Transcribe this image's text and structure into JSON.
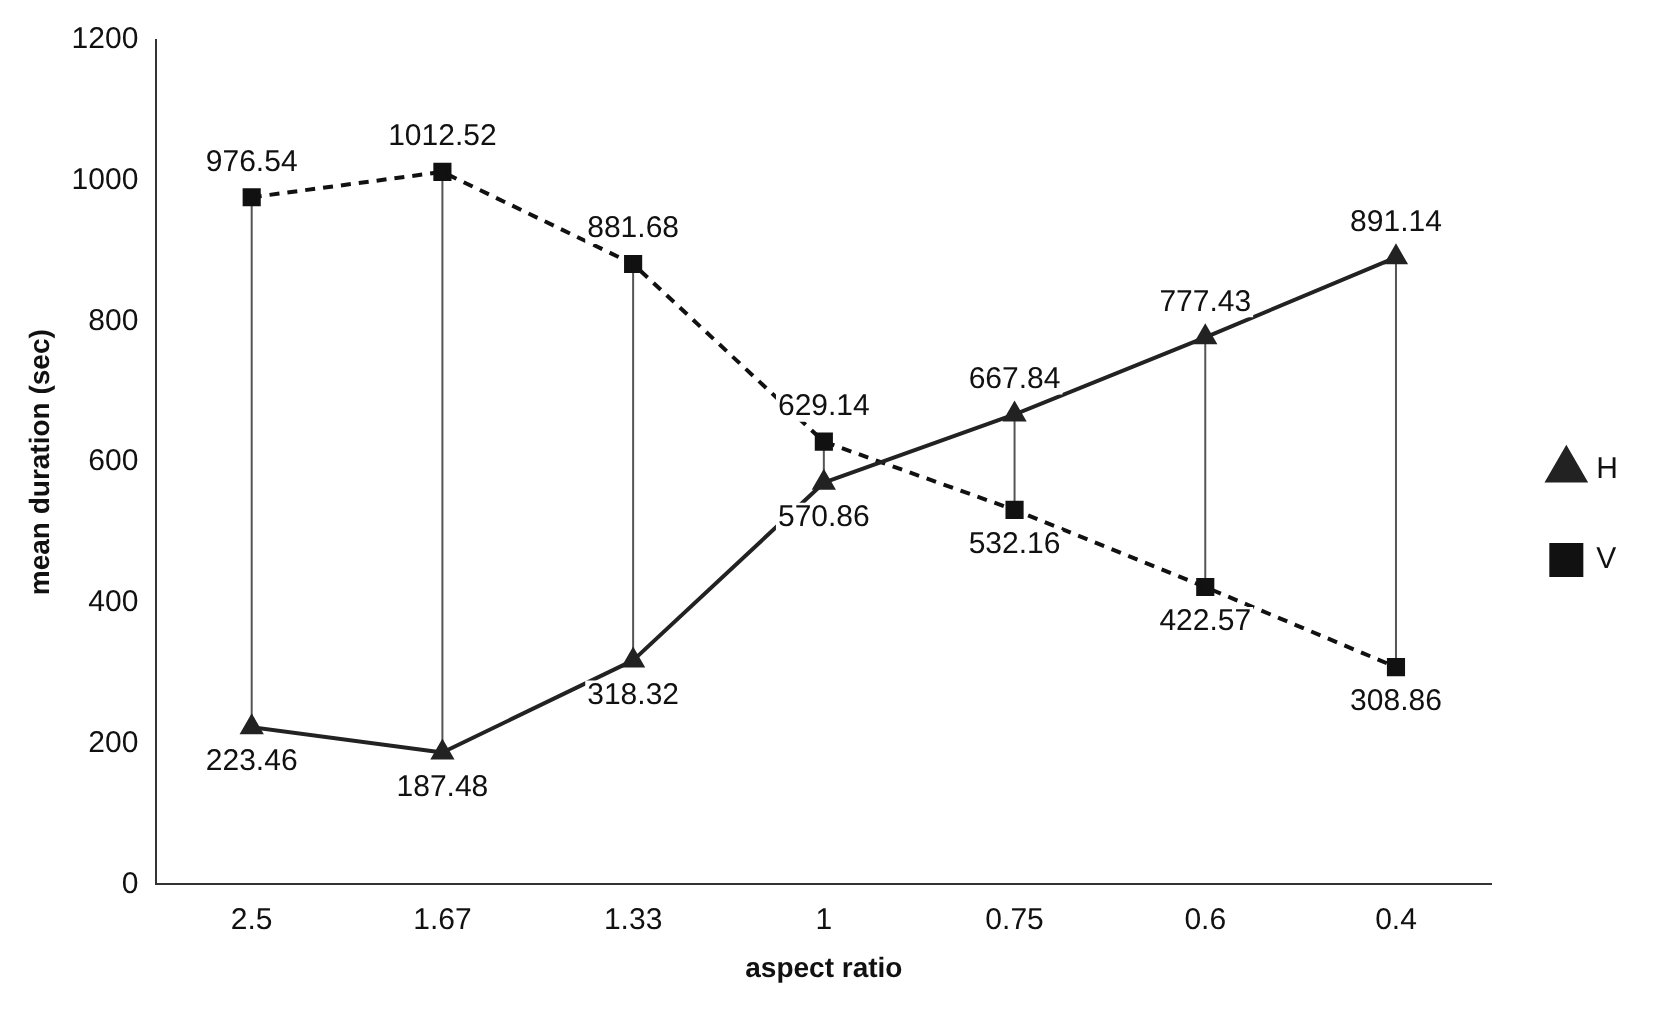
{
  "chart_data": {
    "type": "line",
    "xlabel": "aspect ratio",
    "ylabel": "mean duration (sec)",
    "categories": [
      "2.5",
      "1.67",
      "1.33",
      "1",
      "0.75",
      "0.6",
      "0.4"
    ],
    "series": [
      {
        "name": "H",
        "color": "#222222",
        "marker": "triangle",
        "line_style": "solid",
        "values": [
          223.46,
          187.48,
          318.32,
          570.86,
          667.84,
          777.43,
          891.14
        ]
      },
      {
        "name": "V",
        "color": "#111111",
        "marker": "square",
        "line_style": "dashed",
        "values": [
          976.54,
          1012.52,
          881.68,
          629.14,
          532.16,
          422.57,
          308.86
        ]
      }
    ],
    "ylim": [
      0,
      1200
    ],
    "yticks": [
      0,
      200,
      400,
      600,
      800,
      1000,
      1200
    ],
    "grid": false,
    "legend": "right",
    "data_labels": true
  }
}
